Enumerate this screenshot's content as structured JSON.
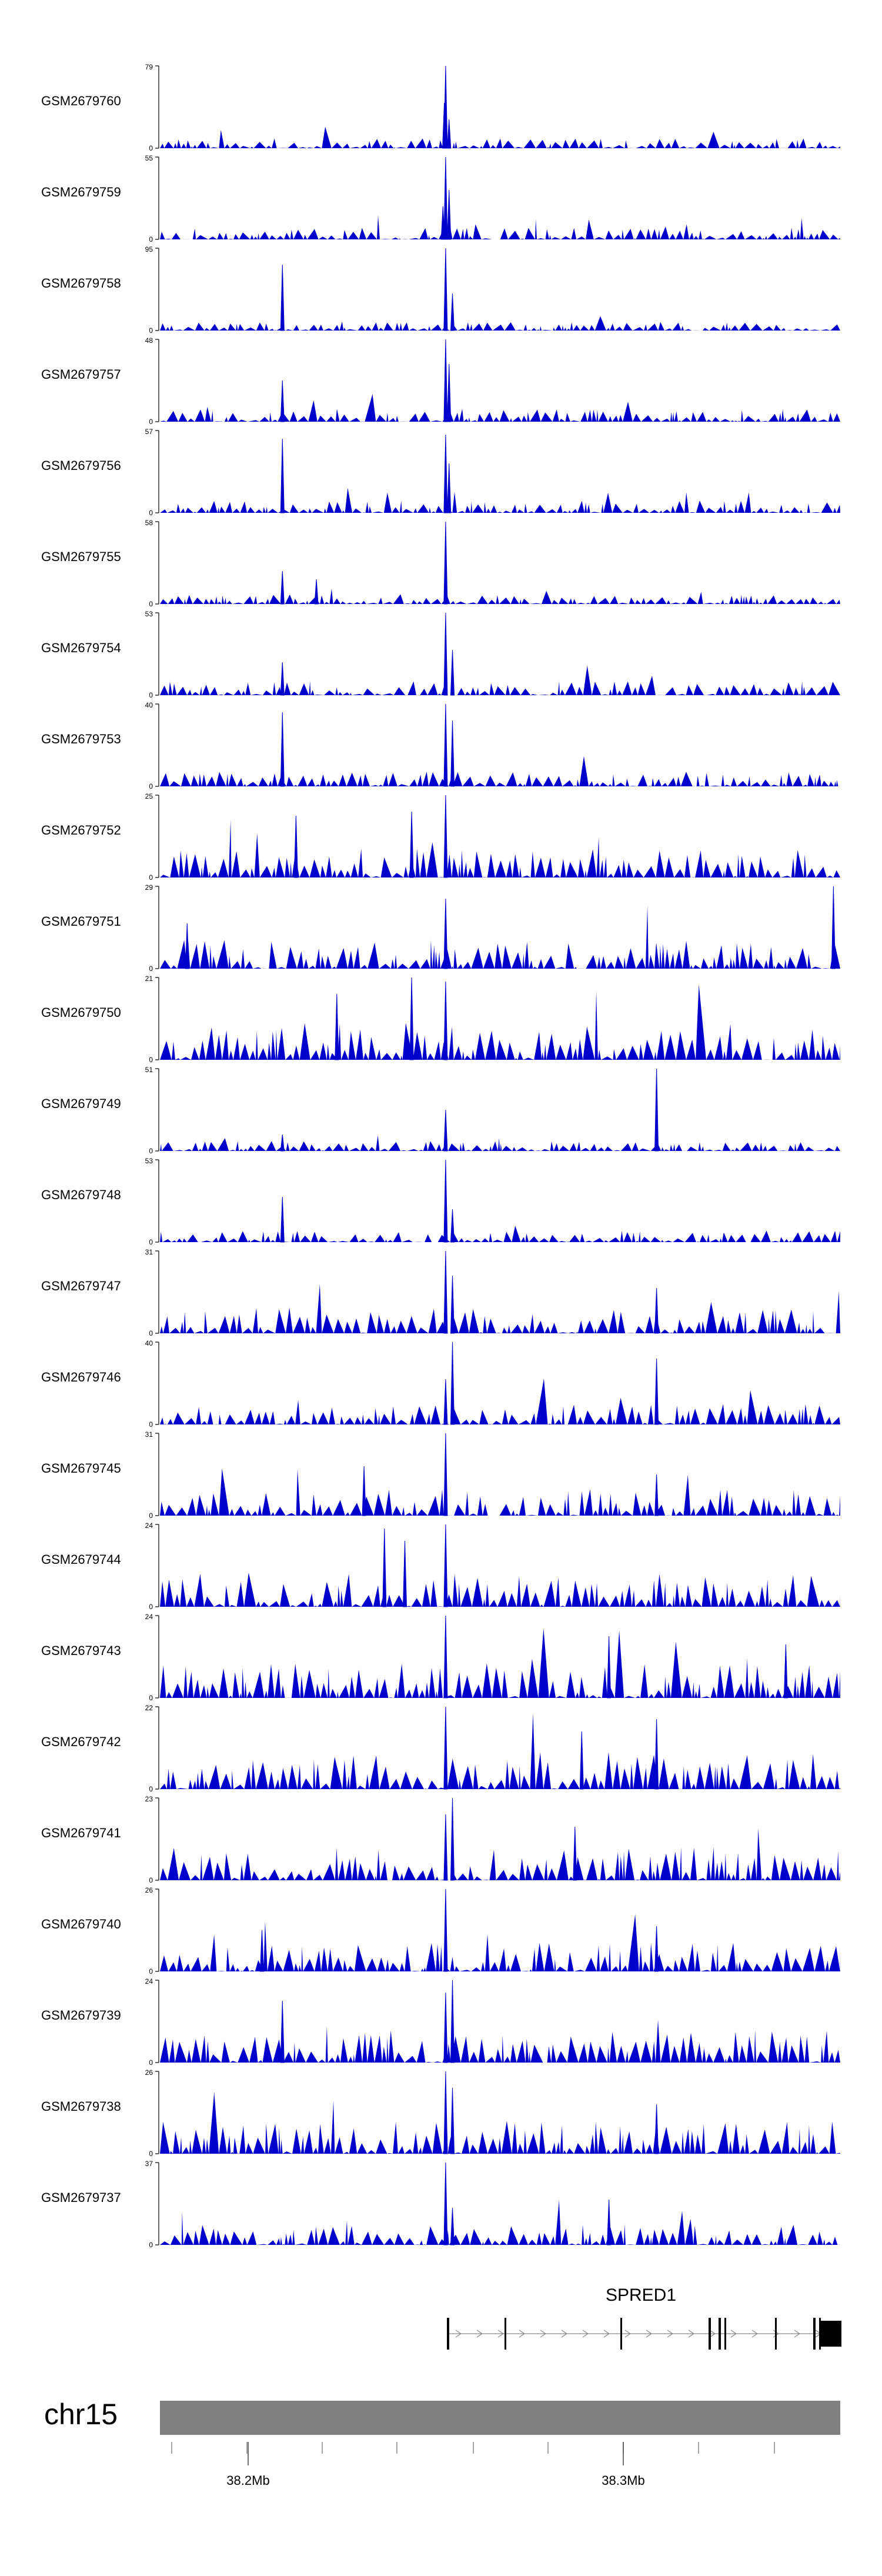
{
  "chart_data": {
    "type": "area",
    "description_free": true,
    "track_color": "#0000cc",
    "axis_color": "#000000",
    "chromosome_color": "#808080",
    "gene_color": "#000000",
    "chromosome": "chr15",
    "genomic_ticks": [
      {
        "label": "38.2Mb"
      },
      {
        "label": "38.3Mb"
      }
    ],
    "gene": {
      "name": "SPRED1",
      "strand": "+"
    },
    "tracks": [
      {
        "name": "GSM2679760",
        "ymin": "0",
        "ymax": "79",
        "peaks": [
          {
            "pos": 0.42,
            "h": 1.0
          },
          {
            "pos": 0.418,
            "h": 0.55
          },
          {
            "pos": 0.425,
            "h": 0.35
          }
        ],
        "noise": 0.12
      },
      {
        "name": "GSM2679759",
        "ymin": "0",
        "ymax": "55",
        "peaks": [
          {
            "pos": 0.42,
            "h": 1.0
          },
          {
            "pos": 0.425,
            "h": 0.6
          },
          {
            "pos": 0.416,
            "h": 0.4
          }
        ],
        "noise": 0.14
      },
      {
        "name": "GSM2679758",
        "ymin": "0",
        "ymax": "95",
        "peaks": [
          {
            "pos": 0.42,
            "h": 1.0
          },
          {
            "pos": 0.18,
            "h": 0.8
          },
          {
            "pos": 0.43,
            "h": 0.45
          }
        ],
        "noise": 0.1
      },
      {
        "name": "GSM2679757",
        "ymin": "0",
        "ymax": "48",
        "peaks": [
          {
            "pos": 0.42,
            "h": 1.0
          },
          {
            "pos": 0.18,
            "h": 0.5
          },
          {
            "pos": 0.425,
            "h": 0.7
          }
        ],
        "noise": 0.16
      },
      {
        "name": "GSM2679756",
        "ymin": "0",
        "ymax": "57",
        "peaks": [
          {
            "pos": 0.42,
            "h": 0.95
          },
          {
            "pos": 0.18,
            "h": 0.9
          },
          {
            "pos": 0.425,
            "h": 0.6
          }
        ],
        "noise": 0.15
      },
      {
        "name": "GSM2679755",
        "ymin": "0",
        "ymax": "58",
        "peaks": [
          {
            "pos": 0.42,
            "h": 1.0
          },
          {
            "pos": 0.18,
            "h": 0.4
          },
          {
            "pos": 0.23,
            "h": 0.3
          }
        ],
        "noise": 0.12
      },
      {
        "name": "GSM2679754",
        "ymin": "0",
        "ymax": "53",
        "peaks": [
          {
            "pos": 0.42,
            "h": 1.0
          },
          {
            "pos": 0.18,
            "h": 0.4
          },
          {
            "pos": 0.43,
            "h": 0.55
          }
        ],
        "noise": 0.17
      },
      {
        "name": "GSM2679753",
        "ymin": "0",
        "ymax": "40",
        "peaks": [
          {
            "pos": 0.18,
            "h": 0.9
          },
          {
            "pos": 0.42,
            "h": 1.0
          },
          {
            "pos": 0.43,
            "h": 0.8
          }
        ],
        "noise": 0.18
      },
      {
        "name": "GSM2679752",
        "ymin": "0",
        "ymax": "25",
        "peaks": [
          {
            "pos": 0.42,
            "h": 1.0
          },
          {
            "pos": 0.2,
            "h": 0.75
          },
          {
            "pos": 0.37,
            "h": 0.8
          }
        ],
        "noise": 0.35
      },
      {
        "name": "GSM2679751",
        "ymin": "0",
        "ymax": "29",
        "peaks": [
          {
            "pos": 0.42,
            "h": 0.85
          },
          {
            "pos": 0.99,
            "h": 1.0
          },
          {
            "pos": 0.04,
            "h": 0.55
          }
        ],
        "noise": 0.35
      },
      {
        "name": "GSM2679750",
        "ymin": "0",
        "ymax": "21",
        "peaks": [
          {
            "pos": 0.37,
            "h": 1.0
          },
          {
            "pos": 0.42,
            "h": 0.95
          },
          {
            "pos": 0.26,
            "h": 0.8
          }
        ],
        "noise": 0.45
      },
      {
        "name": "GSM2679749",
        "ymin": "0",
        "ymax": "51",
        "peaks": [
          {
            "pos": 0.73,
            "h": 1.0
          },
          {
            "pos": 0.42,
            "h": 0.5
          },
          {
            "pos": 0.18,
            "h": 0.2
          }
        ],
        "noise": 0.12
      },
      {
        "name": "GSM2679748",
        "ymin": "0",
        "ymax": "53",
        "peaks": [
          {
            "pos": 0.42,
            "h": 1.0
          },
          {
            "pos": 0.18,
            "h": 0.55
          },
          {
            "pos": 0.43,
            "h": 0.4
          }
        ],
        "noise": 0.14
      },
      {
        "name": "GSM2679747",
        "ymin": "0",
        "ymax": "31",
        "peaks": [
          {
            "pos": 0.42,
            "h": 1.0
          },
          {
            "pos": 0.73,
            "h": 0.55
          },
          {
            "pos": 0.43,
            "h": 0.7
          }
        ],
        "noise": 0.32
      },
      {
        "name": "GSM2679746",
        "ymin": "0",
        "ymax": "40",
        "peaks": [
          {
            "pos": 0.43,
            "h": 1.0
          },
          {
            "pos": 0.73,
            "h": 0.8
          },
          {
            "pos": 0.42,
            "h": 0.55
          }
        ],
        "noise": 0.26
      },
      {
        "name": "GSM2679745",
        "ymin": "0",
        "ymax": "31",
        "peaks": [
          {
            "pos": 0.42,
            "h": 1.0
          },
          {
            "pos": 0.3,
            "h": 0.6
          },
          {
            "pos": 0.73,
            "h": 0.5
          }
        ],
        "noise": 0.32
      },
      {
        "name": "GSM2679744",
        "ymin": "0",
        "ymax": "24",
        "peaks": [
          {
            "pos": 0.42,
            "h": 1.0
          },
          {
            "pos": 0.33,
            "h": 0.95
          },
          {
            "pos": 0.36,
            "h": 0.8
          }
        ],
        "noise": 0.42
      },
      {
        "name": "GSM2679743",
        "ymin": "0",
        "ymax": "24",
        "peaks": [
          {
            "pos": 0.42,
            "h": 1.0
          },
          {
            "pos": 0.66,
            "h": 0.75
          },
          {
            "pos": 0.92,
            "h": 0.65
          }
        ],
        "noise": 0.42
      },
      {
        "name": "GSM2679742",
        "ymin": "0",
        "ymax": "22",
        "peaks": [
          {
            "pos": 0.42,
            "h": 1.0
          },
          {
            "pos": 0.73,
            "h": 0.85
          },
          {
            "pos": 0.62,
            "h": 0.7
          }
        ],
        "noise": 0.45
      },
      {
        "name": "GSM2679741",
        "ymin": "0",
        "ymax": "23",
        "peaks": [
          {
            "pos": 0.43,
            "h": 1.0
          },
          {
            "pos": 0.42,
            "h": 0.8
          },
          {
            "pos": 0.61,
            "h": 0.65
          }
        ],
        "noise": 0.42
      },
      {
        "name": "GSM2679740",
        "ymin": "0",
        "ymax": "26",
        "peaks": [
          {
            "pos": 0.42,
            "h": 1.0
          },
          {
            "pos": 0.73,
            "h": 0.55
          },
          {
            "pos": 0.15,
            "h": 0.5
          }
        ],
        "noise": 0.35
      },
      {
        "name": "GSM2679739",
        "ymin": "0",
        "ymax": "24",
        "peaks": [
          {
            "pos": 0.43,
            "h": 1.0
          },
          {
            "pos": 0.42,
            "h": 0.85
          },
          {
            "pos": 0.18,
            "h": 0.75
          }
        ],
        "noise": 0.4
      },
      {
        "name": "GSM2679738",
        "ymin": "0",
        "ymax": "26",
        "peaks": [
          {
            "pos": 0.42,
            "h": 1.0
          },
          {
            "pos": 0.43,
            "h": 0.8
          },
          {
            "pos": 0.73,
            "h": 0.6
          }
        ],
        "noise": 0.4
      },
      {
        "name": "GSM2679737",
        "ymin": "0",
        "ymax": "37",
        "peaks": [
          {
            "pos": 0.42,
            "h": 1.0
          },
          {
            "pos": 0.66,
            "h": 0.55
          },
          {
            "pos": 0.43,
            "h": 0.45
          }
        ],
        "noise": 0.25
      }
    ]
  }
}
